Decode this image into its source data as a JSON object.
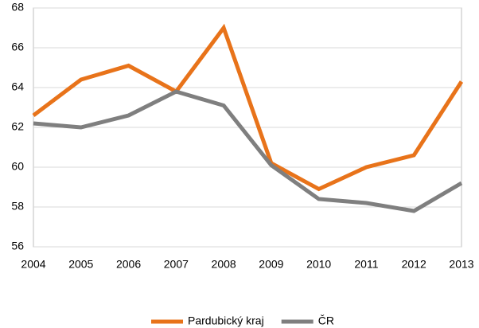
{
  "chart_data": {
    "type": "line",
    "categories": [
      "2004",
      "2005",
      "2006",
      "2007",
      "2008",
      "2009",
      "2010",
      "2011",
      "2012",
      "2013"
    ],
    "series": [
      {
        "name": "Pardubický kraj",
        "color": "#e8731a",
        "values": [
          62.6,
          64.4,
          65.1,
          63.8,
          67.0,
          60.2,
          58.9,
          60.0,
          60.6,
          64.3
        ]
      },
      {
        "name": "ČR",
        "color": "#7f7f7f",
        "values": [
          62.2,
          62.0,
          62.6,
          63.8,
          63.1,
          60.1,
          58.4,
          58.2,
          57.8,
          59.2
        ]
      }
    ],
    "ylim": [
      56,
      68
    ],
    "yticks": [
      56,
      58,
      60,
      62,
      64,
      66,
      68
    ],
    "grid": true,
    "legend": "bottom"
  }
}
